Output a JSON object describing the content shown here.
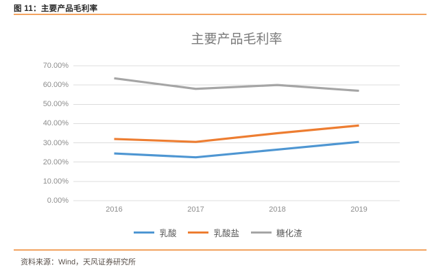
{
  "figure": {
    "header_title": "图 11：主要产品毛利率",
    "source_text": "资料来源：Wind，天风证券研究所"
  },
  "colors": {
    "accent_divider": "#f2a25f",
    "gridline": "#dcdcdc",
    "axis_text": "#8c8c8c",
    "title_text": "#7a7a7a"
  },
  "chart_data": {
    "type": "line",
    "title": "主要产品毛利率",
    "categories": [
      "2016",
      "2017",
      "2018",
      "2019"
    ],
    "series": [
      {
        "name": "乳酸",
        "color": "#4e96d2",
        "values": [
          24.5,
          22.5,
          26.5,
          30.5
        ]
      },
      {
        "name": "乳酸盐",
        "color": "#ed7d31",
        "values": [
          32.0,
          30.5,
          35.0,
          39.0
        ]
      },
      {
        "name": "糖化渣",
        "color": "#a5a5a5",
        "values": [
          63.5,
          58.0,
          60.0,
          57.0
        ]
      }
    ],
    "unit": "percent",
    "y_axis": {
      "min": 0,
      "max": 70,
      "step": 10
    },
    "y_tick_labels": [
      "0.00%",
      "10.00%",
      "20.00%",
      "30.00%",
      "40.00%",
      "50.00%",
      "60.00%",
      "70.00%"
    ],
    "ylim": [
      0,
      70
    ],
    "grid": "horizontal",
    "legend_position": "bottom"
  }
}
